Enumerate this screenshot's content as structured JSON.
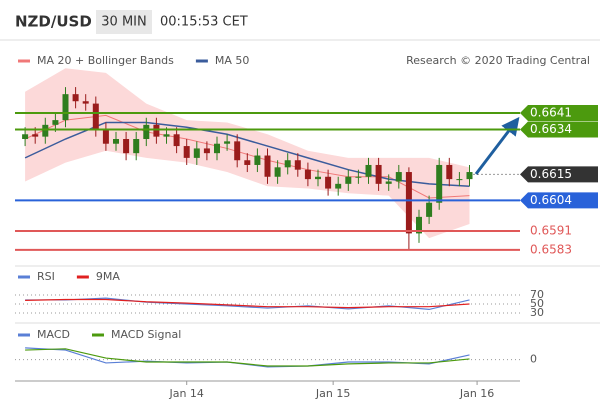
{
  "header": {
    "symbol": "NZD/USD",
    "interval": "30 MIN",
    "time": "00:15:53 CET"
  },
  "chart_data": [
    {
      "type": "candlestick",
      "note": "Research © 2020 Trading Central",
      "up_color": "#2f7d1f",
      "down_color": "#9a1c1c",
      "xlim": [
        0,
        100
      ],
      "ylim": [
        0.658,
        0.6655
      ],
      "x": [
        2,
        4,
        6,
        8,
        10,
        12,
        14,
        16,
        18,
        20,
        22,
        24,
        26,
        28,
        30,
        32,
        34,
        36,
        38,
        40,
        42,
        44,
        46,
        48,
        50,
        52,
        54,
        56,
        58,
        60,
        62,
        64,
        66,
        68,
        70,
        72,
        74,
        76,
        78,
        80,
        82,
        84,
        86,
        88,
        90
      ],
      "open": [
        0.663,
        0.6632,
        0.6631,
        0.6636,
        0.6638,
        0.6649,
        0.6646,
        0.6645,
        0.6634,
        0.6628,
        0.663,
        0.6624,
        0.663,
        0.6636,
        0.6631,
        0.6632,
        0.6627,
        0.6622,
        0.6626,
        0.6624,
        0.6628,
        0.6629,
        0.6621,
        0.6619,
        0.6623,
        0.6614,
        0.6618,
        0.6621,
        0.6617,
        0.6613,
        0.6614,
        0.6609,
        0.6611,
        0.6614,
        0.6614,
        0.6619,
        0.6611,
        0.6612,
        0.6616,
        0.659,
        0.6597,
        0.6603,
        0.6619,
        0.6613,
        0.6613
      ],
      "high": [
        0.6635,
        0.6635,
        0.6639,
        0.6641,
        0.6652,
        0.6652,
        0.6649,
        0.6648,
        0.6637,
        0.6633,
        0.6633,
        0.6633,
        0.6639,
        0.6639,
        0.6635,
        0.6635,
        0.663,
        0.6629,
        0.6629,
        0.6631,
        0.6632,
        0.6632,
        0.6624,
        0.6626,
        0.6626,
        0.6621,
        0.6624,
        0.6624,
        0.662,
        0.6617,
        0.6617,
        0.6614,
        0.6617,
        0.6617,
        0.6622,
        0.6622,
        0.6615,
        0.6619,
        0.6618,
        0.66,
        0.6606,
        0.6622,
        0.6622,
        0.6616,
        0.6619
      ],
      "low": [
        0.6627,
        0.6628,
        0.6628,
        0.6633,
        0.6635,
        0.6643,
        0.6642,
        0.6631,
        0.6625,
        0.6625,
        0.6621,
        0.6621,
        0.6627,
        0.6628,
        0.6628,
        0.6624,
        0.6619,
        0.6619,
        0.6621,
        0.6621,
        0.6625,
        0.6618,
        0.6616,
        0.6616,
        0.6611,
        0.6611,
        0.6615,
        0.6614,
        0.661,
        0.661,
        0.6606,
        0.6606,
        0.6608,
        0.6611,
        0.6611,
        0.6608,
        0.6608,
        0.6609,
        0.6583,
        0.6586,
        0.6594,
        0.66,
        0.661,
        0.661,
        0.661
      ],
      "close": [
        0.6632,
        0.6631,
        0.6636,
        0.6638,
        0.6649,
        0.6646,
        0.6645,
        0.6634,
        0.6628,
        0.663,
        0.6624,
        0.663,
        0.6636,
        0.6631,
        0.6632,
        0.6627,
        0.6622,
        0.6626,
        0.6624,
        0.6628,
        0.6629,
        0.6621,
        0.6619,
        0.6623,
        0.6614,
        0.6618,
        0.6621,
        0.6617,
        0.6613,
        0.6614,
        0.6609,
        0.6611,
        0.6614,
        0.6614,
        0.6619,
        0.6611,
        0.6612,
        0.6616,
        0.659,
        0.6597,
        0.6603,
        0.6619,
        0.6613,
        0.6613,
        0.6616
      ],
      "series": [
        {
          "name": "MA 20 + Bollinger Bands",
          "color": "#f07878",
          "band_color": "#fcd9d9",
          "x": [
            2,
            10,
            18,
            26,
            34,
            42,
            50,
            58,
            66,
            74,
            82,
            90
          ],
          "values": [
            0.663,
            0.6638,
            0.664,
            0.6633,
            0.663,
            0.6626,
            0.6621,
            0.6617,
            0.6614,
            0.6614,
            0.6605,
            0.6606
          ],
          "upper": [
            0.665,
            0.666,
            0.6658,
            0.6645,
            0.6638,
            0.6637,
            0.6632,
            0.6625,
            0.6622,
            0.6622,
            0.6622,
            0.6618
          ],
          "lower": [
            0.6612,
            0.662,
            0.6625,
            0.6622,
            0.662,
            0.6616,
            0.661,
            0.6609,
            0.6607,
            0.6606,
            0.6588,
            0.6594
          ]
        },
        {
          "name": "MA 50",
          "color": "#3b5c9c",
          "x": [
            2,
            10,
            18,
            26,
            34,
            42,
            50,
            58,
            66,
            74,
            82,
            90
          ],
          "values": [
            0.6622,
            0.663,
            0.6637,
            0.6637,
            0.6635,
            0.6632,
            0.6627,
            0.6622,
            0.6617,
            0.6613,
            0.6611,
            0.661
          ]
        }
      ],
      "levels": [
        {
          "value": 0.6641,
          "color": "#4c9a0e",
          "style": "box"
        },
        {
          "value": 0.6634,
          "color": "#4c9a0e",
          "style": "box"
        },
        {
          "value": 0.6615,
          "color": "#333333",
          "style": "box",
          "line": "dotted"
        },
        {
          "value": 0.6604,
          "color": "#2962d9",
          "style": "box"
        },
        {
          "value": 0.6591,
          "color": "#e05858",
          "style": "text"
        },
        {
          "value": 0.6583,
          "color": "#e05858",
          "style": "text"
        }
      ]
    },
    {
      "type": "line",
      "ylim": [
        20,
        80
      ],
      "yticks": [
        70,
        50,
        30
      ],
      "series": [
        {
          "name": "RSI",
          "color": "#5a7fd6",
          "x": [
            2,
            10,
            18,
            26,
            34,
            42,
            50,
            58,
            66,
            74,
            82,
            90
          ],
          "values": [
            59,
            59,
            63,
            54,
            50,
            46,
            41,
            46,
            39,
            46,
            38,
            59
          ]
        },
        {
          "name": "9MA",
          "color": "#e02020",
          "x": [
            2,
            10,
            18,
            26,
            34,
            42,
            50,
            58,
            66,
            74,
            82,
            90
          ],
          "values": [
            58,
            60,
            60,
            55,
            52,
            48,
            44,
            44,
            42,
            44,
            44,
            50
          ]
        }
      ]
    },
    {
      "type": "line",
      "ylim": [
        -0.0006,
        0.0008
      ],
      "yticks": [
        0
      ],
      "xticks": [
        {
          "value": 34,
          "label": "Jan 14"
        },
        {
          "value": 63,
          "label": "Jan 15"
        },
        {
          "value": 91.5,
          "label": "Jan 16"
        }
      ],
      "series": [
        {
          "name": "MACD",
          "color": "#5a7fd6",
          "x": [
            2,
            10,
            18,
            26,
            34,
            42,
            50,
            58,
            66,
            74,
            82,
            90
          ],
          "values": [
            0.00038,
            0.00031,
            -0.00011,
            -5e-05,
            -0.00011,
            -8e-05,
            -0.00024,
            -0.00021,
            -8e-05,
            -8e-05,
            -0.00014,
            0.00015
          ]
        },
        {
          "name": "MACD Signal",
          "color": "#4c9a0e",
          "x": [
            2,
            10,
            18,
            26,
            34,
            42,
            50,
            58,
            66,
            74,
            82,
            90
          ],
          "values": [
            0.00031,
            0.00035,
            5e-05,
            -8e-05,
            -8e-05,
            -8e-05,
            -0.00021,
            -0.00021,
            -0.00014,
            -0.00011,
            -0.00011,
            2e-05
          ]
        }
      ]
    }
  ]
}
